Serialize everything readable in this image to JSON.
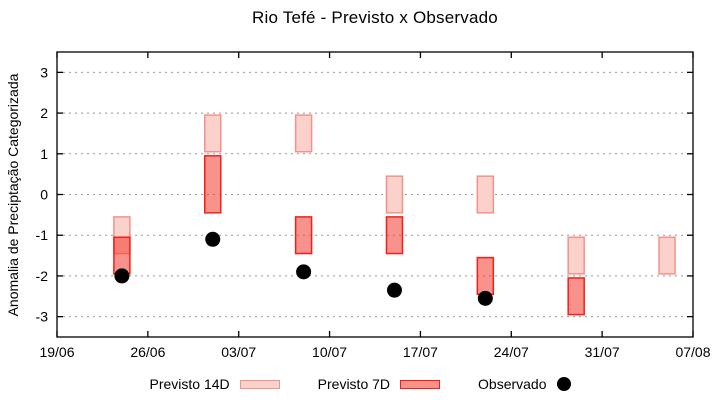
{
  "title": "Rio Tefé - Previsto x Observado",
  "axes": {
    "ylabel": "Anomalia de Preciptação Categorizada",
    "ylim": [
      -3.5,
      3.5
    ],
    "y_ticks": [
      -3,
      -2,
      -1,
      0,
      1,
      2,
      3
    ],
    "x_tick_labels": [
      "19/06",
      "26/06",
      "03/07",
      "10/07",
      "17/07",
      "24/07",
      "31/07",
      "07/08"
    ],
    "x_tick_days": [
      0,
      7,
      14,
      21,
      28,
      35,
      42,
      49
    ],
    "grid": "dotted horizontal at each y tick"
  },
  "legend": {
    "items": [
      {
        "label": "Previsto 14D",
        "type": "box"
      },
      {
        "label": "Previsto 7D",
        "type": "box"
      },
      {
        "label": "Observado",
        "type": "dot"
      }
    ]
  },
  "colors": {
    "previsto_14d_fill": "#fad1cb",
    "previsto_14d_border": "#f0938c",
    "previsto_7d_fill_rgba": "rgba(242,57,45,0.55)",
    "previsto_7d_fill_on_white": "#f8928b",
    "previsto_7d_border": "#f41f18",
    "observado": "#000000",
    "grid": "#999999",
    "frame": "#000000"
  },
  "chart_data": {
    "type": "bar",
    "subtype": "vertical-range-bars-with-scatter",
    "title": "Rio Tefé - Previsto x Observado",
    "xlabel": "",
    "ylabel": "Anomalia de Preciptação Categorizada",
    "ylim": [
      -3.5,
      3.5
    ],
    "x_axis_dates": [
      "19/06",
      "26/06",
      "03/07",
      "10/07",
      "17/07",
      "24/07",
      "31/07",
      "07/08"
    ],
    "legend_position": "bottom-center",
    "groups": [
      {
        "date": "24/06",
        "day": 5,
        "previsto_14d": [
          -0.55,
          -1.45
        ],
        "previsto_7d": [
          -1.05,
          -1.95
        ],
        "observado": -2.0
      },
      {
        "date": "01/07",
        "day": 12,
        "previsto_14d": [
          1.95,
          1.05
        ],
        "previsto_7d": [
          0.95,
          -0.45
        ],
        "observado": -1.1
      },
      {
        "date": "08/07",
        "day": 19,
        "previsto_14d": [
          1.95,
          1.05
        ],
        "previsto_7d": [
          -0.55,
          -1.45
        ],
        "observado": -1.9
      },
      {
        "date": "15/07",
        "day": 26,
        "previsto_14d": [
          0.45,
          -0.45
        ],
        "previsto_7d": [
          -0.55,
          -1.45
        ],
        "observado": -2.35
      },
      {
        "date": "22/07",
        "day": 33,
        "previsto_14d": [
          0.45,
          -0.45
        ],
        "previsto_7d": [
          -1.55,
          -2.45
        ],
        "observado": -2.55
      },
      {
        "date": "29/07",
        "day": 40,
        "previsto_14d": [
          -1.05,
          -1.95
        ],
        "previsto_7d": [
          -2.05,
          -2.95
        ],
        "observado": null
      },
      {
        "date": "05/08",
        "day": 47,
        "previsto_14d": [
          -1.05,
          -1.95
        ],
        "previsto_7d": null,
        "observado": null
      }
    ]
  }
}
